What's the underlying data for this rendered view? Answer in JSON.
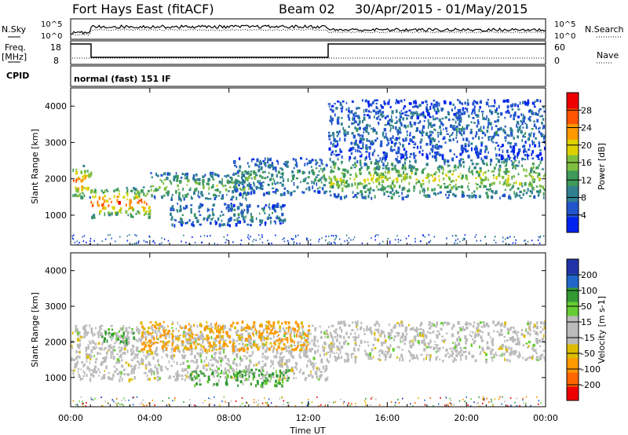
{
  "header": {
    "station": "Fort Hays East (fitACF)",
    "beam": "Beam 02",
    "date_range": "30/Apr/2015 - 01/May/2015"
  },
  "strip": {
    "nsky_label": "N.Sky",
    "nsearch_label": "N.Search",
    "nsky_ticks": [
      "10^5",
      "10^0"
    ],
    "nsearch_ticks": [
      "10^5",
      "10^0"
    ],
    "freq_label_1": "Freq.",
    "freq_label_2": "[MHz]",
    "freq_ticks": [
      "18",
      "8"
    ],
    "nave_label": "Nave",
    "nave_ticks": [
      "60",
      "0"
    ],
    "cpid_label": "CPID",
    "cpid_text": "normal (fast) 151 IF"
  },
  "colors": {
    "power_scale": [
      "#0022ee",
      "#2255cc",
      "#2f7f8f",
      "#3f9a5a",
      "#7fbf3f",
      "#ddd200",
      "#ff9900",
      "#ff5500",
      "#ee0000"
    ],
    "velocity_scale": [
      "#ee0000",
      "#ff6600",
      "#ff9900",
      "#ddbb00",
      "#bbbbbb",
      "#bbbbbb",
      "#66cc33",
      "#339933",
      "#2266cc",
      "#2233aa"
    ],
    "ground_scatter": "#bbbbbb"
  },
  "chart_data": [
    {
      "type": "heatmap",
      "title": "",
      "quantity": "Power",
      "xlabel": "",
      "ylabel": "Slant Range [km]",
      "colorbar_label": "Power [dB]",
      "colorbar_ticks": [
        "4",
        "8",
        "12",
        "16",
        "20",
        "24",
        "28"
      ],
      "x_ticks": [
        "00:00",
        "04:00",
        "08:00",
        "12:00",
        "16:00",
        "20:00",
        "00:00"
      ],
      "y_ticks": [
        "1000",
        "2000",
        "3000",
        "4000"
      ],
      "x_range_hours": [
        0,
        24
      ],
      "y_range_km": [
        180,
        4500
      ],
      "echo_bands": [
        {
          "t_start": 0.0,
          "t_end": 1.0,
          "r_low": 1500,
          "r_high": 2400,
          "peak_db": 24
        },
        {
          "t_start": 1.0,
          "t_end": 4.0,
          "r_low": 950,
          "r_high": 1800,
          "peak_db": 24
        },
        {
          "t_start": 4.0,
          "t_end": 9.0,
          "r_low": 1450,
          "r_high": 2200,
          "peak_db": 14
        },
        {
          "t_start": 5.0,
          "t_end": 10.8,
          "r_low": 750,
          "r_high": 1350,
          "peak_db": 8
        },
        {
          "t_start": 8.0,
          "t_end": 12.9,
          "r_low": 1600,
          "r_high": 2600,
          "peak_db": 10
        },
        {
          "t_start": 13.0,
          "t_end": 24.0,
          "r_low": 1500,
          "r_high": 2600,
          "peak_db": 16
        },
        {
          "t_start": 13.0,
          "t_end": 24.0,
          "r_low": 2600,
          "r_high": 4200,
          "peak_db": 6
        }
      ]
    },
    {
      "type": "heatmap",
      "title": "",
      "quantity": "Velocity",
      "xlabel": "Time UT",
      "ylabel": "Slant Range [km]",
      "colorbar_label": "Velocity [m s-1]",
      "colorbar_ticks": [
        "200",
        "100",
        "50",
        "15",
        "-15",
        "-50",
        "-100",
        "-200"
      ],
      "x_ticks": [
        "00:00",
        "04:00",
        "08:00",
        "12:00",
        "16:00",
        "20:00",
        "00:00"
      ],
      "y_ticks": [
        "1000",
        "2000",
        "3000",
        "4000"
      ],
      "x_range_hours": [
        0,
        24
      ],
      "y_range_km": [
        180,
        4500
      ],
      "echo_bands": [
        {
          "t_start": 0.0,
          "t_end": 13.0,
          "r_low": 950,
          "r_high": 2500,
          "velocity": 0,
          "ground_scatter": true
        },
        {
          "t_start": 6.0,
          "t_end": 11.0,
          "r_low": 800,
          "r_high": 1250,
          "velocity": 40
        },
        {
          "t_start": 3.5,
          "t_end": 12.0,
          "r_low": 1800,
          "r_high": 2600,
          "velocity": -40
        },
        {
          "t_start": 1.5,
          "t_end": 3.2,
          "r_low": 2000,
          "r_high": 2400,
          "velocity": 40
        },
        {
          "t_start": 13.0,
          "t_end": 24.0,
          "r_low": 1500,
          "r_high": 2600,
          "velocity": 0,
          "ground_scatter": true
        }
      ]
    }
  ]
}
